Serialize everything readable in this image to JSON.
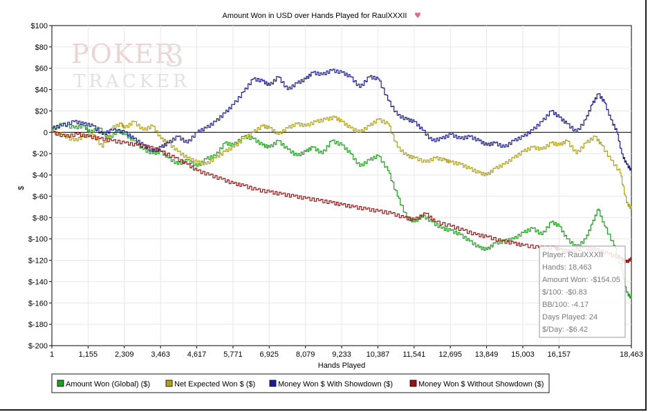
{
  "chart_data": {
    "type": "line",
    "title": "Amount Won in USD over Hands Played for RaulXXXII",
    "xlabel": "Hands Played",
    "ylabel": "$",
    "xlim": [
      1,
      18463
    ],
    "ylim": [
      -200,
      100
    ],
    "x_ticks": [
      1,
      1155,
      2309,
      3463,
      4617,
      5771,
      6925,
      8079,
      9233,
      10387,
      11541,
      12695,
      13849,
      15003,
      16157,
      18463
    ],
    "x_tick_labels": [
      "1",
      "1,155",
      "2,309",
      "3,463",
      "4,617",
      "5,771",
      "6,925",
      "8,079",
      "9,233",
      "10,387",
      "11,541",
      "12,695",
      "13,849",
      "15,003",
      "16,157",
      "18,463"
    ],
    "y_ticks": [
      100,
      80,
      60,
      40,
      20,
      0,
      -20,
      -40,
      -60,
      -80,
      -100,
      -120,
      -140,
      -160,
      -180,
      -200
    ],
    "y_tick_labels": [
      "$100",
      "$80",
      "$60",
      "$40",
      "$20",
      "0",
      "$-20",
      "$-40",
      "$-60",
      "$-80",
      "$-100",
      "$-120",
      "$-140",
      "$-160",
      "$-180",
      "$-200"
    ],
    "grid": true,
    "legend_position": "bottom",
    "series": [
      {
        "name": "Amount Won (Global) ($)",
        "color": "#19a319",
        "points": [
          [
            1,
            2
          ],
          [
            300,
            8
          ],
          [
            700,
            4
          ],
          [
            1000,
            6
          ],
          [
            1200,
            0
          ],
          [
            1500,
            4
          ],
          [
            1800,
            -6
          ],
          [
            2100,
            2
          ],
          [
            2309,
            -2
          ],
          [
            2600,
            -8
          ],
          [
            2900,
            -16
          ],
          [
            3200,
            -20
          ],
          [
            3463,
            -18
          ],
          [
            3700,
            -24
          ],
          [
            4000,
            -30
          ],
          [
            4300,
            -26
          ],
          [
            4617,
            -32
          ],
          [
            4900,
            -25
          ],
          [
            5200,
            -22
          ],
          [
            5500,
            -10
          ],
          [
            5771,
            -12
          ],
          [
            6100,
            -4
          ],
          [
            6400,
            -6
          ],
          [
            6700,
            -12
          ],
          [
            6925,
            -14
          ],
          [
            7200,
            -8
          ],
          [
            7500,
            -16
          ],
          [
            7800,
            -22
          ],
          [
            8079,
            -18
          ],
          [
            8300,
            -14
          ],
          [
            8600,
            -20
          ],
          [
            8900,
            -8
          ],
          [
            9233,
            -12
          ],
          [
            9500,
            -20
          ],
          [
            9800,
            -32
          ],
          [
            10100,
            -26
          ],
          [
            10387,
            -22
          ],
          [
            10700,
            -36
          ],
          [
            11000,
            -60
          ],
          [
            11300,
            -80
          ],
          [
            11541,
            -84
          ],
          [
            11800,
            -78
          ],
          [
            12100,
            -84
          ],
          [
            12400,
            -90
          ],
          [
            12695,
            -92
          ],
          [
            13000,
            -96
          ],
          [
            13300,
            -102
          ],
          [
            13600,
            -108
          ],
          [
            13849,
            -110
          ],
          [
            14100,
            -104
          ],
          [
            14400,
            -102
          ],
          [
            14700,
            -100
          ],
          [
            15003,
            -94
          ],
          [
            15300,
            -90
          ],
          [
            15600,
            -96
          ],
          [
            15900,
            -84
          ],
          [
            16157,
            -88
          ],
          [
            16400,
            -100
          ],
          [
            16700,
            -108
          ],
          [
            17000,
            -100
          ],
          [
            17200,
            -86
          ],
          [
            17400,
            -72
          ],
          [
            17600,
            -88
          ],
          [
            17900,
            -106
          ],
          [
            18150,
            -128
          ],
          [
            18300,
            -150
          ],
          [
            18463,
            -156
          ]
        ]
      },
      {
        "name": "Net Expected Won $ ($)",
        "color": "#b0a214",
        "points": [
          [
            1,
            0
          ],
          [
            300,
            -2
          ],
          [
            700,
            -8
          ],
          [
            1000,
            -4
          ],
          [
            1300,
            -2
          ],
          [
            1600,
            -14
          ],
          [
            1900,
            4
          ],
          [
            2200,
            8
          ],
          [
            2309,
            4
          ],
          [
            2600,
            10
          ],
          [
            2900,
            2
          ],
          [
            3200,
            6
          ],
          [
            3463,
            -6
          ],
          [
            3700,
            -10
          ],
          [
            4000,
            -18
          ],
          [
            4300,
            -24
          ],
          [
            4617,
            -28
          ],
          [
            4900,
            -30
          ],
          [
            5200,
            -24
          ],
          [
            5500,
            -18
          ],
          [
            5771,
            -14
          ],
          [
            6100,
            -6
          ],
          [
            6400,
            0
          ],
          [
            6700,
            6
          ],
          [
            6925,
            4
          ],
          [
            7200,
            -2
          ],
          [
            7500,
            4
          ],
          [
            7800,
            8
          ],
          [
            8079,
            6
          ],
          [
            8400,
            10
          ],
          [
            8700,
            12
          ],
          [
            9000,
            14
          ],
          [
            9233,
            10
          ],
          [
            9500,
            4
          ],
          [
            9800,
            0
          ],
          [
            10100,
            6
          ],
          [
            10387,
            12
          ],
          [
            10700,
            8
          ],
          [
            11000,
            -14
          ],
          [
            11300,
            -22
          ],
          [
            11541,
            -24
          ],
          [
            11900,
            -28
          ],
          [
            12200,
            -24
          ],
          [
            12500,
            -26
          ],
          [
            12695,
            -28
          ],
          [
            13000,
            -30
          ],
          [
            13300,
            -34
          ],
          [
            13600,
            -38
          ],
          [
            13849,
            -40
          ],
          [
            14100,
            -34
          ],
          [
            14400,
            -30
          ],
          [
            14700,
            -24
          ],
          [
            15003,
            -18
          ],
          [
            15300,
            -14
          ],
          [
            15600,
            -16
          ],
          [
            15900,
            -10
          ],
          [
            16157,
            -12
          ],
          [
            16400,
            -8
          ],
          [
            16700,
            -20
          ],
          [
            17000,
            -10
          ],
          [
            17300,
            -4
          ],
          [
            17500,
            -12
          ],
          [
            17800,
            -26
          ],
          [
            18100,
            -38
          ],
          [
            18300,
            -66
          ],
          [
            18463,
            -72
          ]
        ]
      },
      {
        "name": "Money Won $ With Showdown ($)",
        "color": "#1c1c96",
        "points": [
          [
            1,
            4
          ],
          [
            300,
            6
          ],
          [
            700,
            10
          ],
          [
            1000,
            8
          ],
          [
            1300,
            6
          ],
          [
            1600,
            -2
          ],
          [
            1900,
            2
          ],
          [
            2309,
            0
          ],
          [
            2600,
            -6
          ],
          [
            2900,
            -12
          ],
          [
            3200,
            -18
          ],
          [
            3463,
            -14
          ],
          [
            3700,
            -10
          ],
          [
            4000,
            -4
          ],
          [
            4300,
            -10
          ],
          [
            4617,
            0
          ],
          [
            4900,
            4
          ],
          [
            5200,
            10
          ],
          [
            5500,
            18
          ],
          [
            5771,
            26
          ],
          [
            6100,
            38
          ],
          [
            6400,
            50
          ],
          [
            6700,
            48
          ],
          [
            6925,
            44
          ],
          [
            7200,
            52
          ],
          [
            7500,
            40
          ],
          [
            7800,
            46
          ],
          [
            8079,
            50
          ],
          [
            8300,
            56
          ],
          [
            8600,
            54
          ],
          [
            8900,
            58
          ],
          [
            9233,
            56
          ],
          [
            9500,
            52
          ],
          [
            9800,
            42
          ],
          [
            10100,
            52
          ],
          [
            10387,
            50
          ],
          [
            10700,
            30
          ],
          [
            11000,
            16
          ],
          [
            11300,
            12
          ],
          [
            11541,
            10
          ],
          [
            11800,
            2
          ],
          [
            12100,
            -8
          ],
          [
            12400,
            -6
          ],
          [
            12695,
            -2
          ],
          [
            13000,
            -6
          ],
          [
            13300,
            -4
          ],
          [
            13600,
            -8
          ],
          [
            13849,
            -12
          ],
          [
            14100,
            -10
          ],
          [
            14400,
            -14
          ],
          [
            14700,
            -8
          ],
          [
            15003,
            -4
          ],
          [
            15300,
            2
          ],
          [
            15600,
            10
          ],
          [
            15900,
            20
          ],
          [
            16157,
            14
          ],
          [
            16400,
            8
          ],
          [
            16700,
            0
          ],
          [
            17000,
            12
          ],
          [
            17200,
            26
          ],
          [
            17400,
            36
          ],
          [
            17600,
            28
          ],
          [
            17800,
            12
          ],
          [
            18000,
            0
          ],
          [
            18150,
            -20
          ],
          [
            18300,
            -30
          ],
          [
            18463,
            -36
          ]
        ]
      },
      {
        "name": "Money Won $ Without Showdown ($)",
        "color": "#a01010",
        "points": [
          [
            1,
            0
          ],
          [
            400,
            -4
          ],
          [
            800,
            -2
          ],
          [
            1155,
            -4
          ],
          [
            1500,
            -6
          ],
          [
            1900,
            -8
          ],
          [
            2309,
            -10
          ],
          [
            2700,
            -12
          ],
          [
            3100,
            -14
          ],
          [
            3463,
            -18
          ],
          [
            3900,
            -24
          ],
          [
            4300,
            -30
          ],
          [
            4617,
            -36
          ],
          [
            5000,
            -40
          ],
          [
            5400,
            -44
          ],
          [
            5771,
            -48
          ],
          [
            6100,
            -50
          ],
          [
            6500,
            -54
          ],
          [
            6925,
            -56
          ],
          [
            7300,
            -58
          ],
          [
            7700,
            -60
          ],
          [
            8079,
            -62
          ],
          [
            8500,
            -64
          ],
          [
            8900,
            -66
          ],
          [
            9233,
            -68
          ],
          [
            9600,
            -70
          ],
          [
            10000,
            -72
          ],
          [
            10387,
            -74
          ],
          [
            10800,
            -76
          ],
          [
            11200,
            -80
          ],
          [
            11541,
            -82
          ],
          [
            11900,
            -76
          ],
          [
            12200,
            -84
          ],
          [
            12695,
            -88
          ],
          [
            13100,
            -92
          ],
          [
            13500,
            -96
          ],
          [
            13849,
            -98
          ],
          [
            14300,
            -102
          ],
          [
            14700,
            -104
          ],
          [
            15003,
            -106
          ],
          [
            15500,
            -108
          ],
          [
            16000,
            -108
          ],
          [
            16157,
            -110
          ],
          [
            16500,
            -112
          ],
          [
            16900,
            -108
          ],
          [
            17300,
            -110
          ],
          [
            17700,
            -114
          ],
          [
            18100,
            -118
          ],
          [
            18300,
            -122
          ],
          [
            18463,
            -118
          ]
        ]
      }
    ]
  },
  "tooltip": {
    "lines": [
      "Player: RaulXXXII",
      "Hands: 18,463",
      "Amount Won: -$154.05",
      "$/100: -$0.83",
      "BB/100: -4.17",
      "Days Played: 24",
      "$/Day: -$6.42"
    ]
  },
  "logo": {
    "line1": "POKER",
    "numeral": "3",
    "line2": "TRACKER"
  },
  "title_icon": "heart-icon"
}
